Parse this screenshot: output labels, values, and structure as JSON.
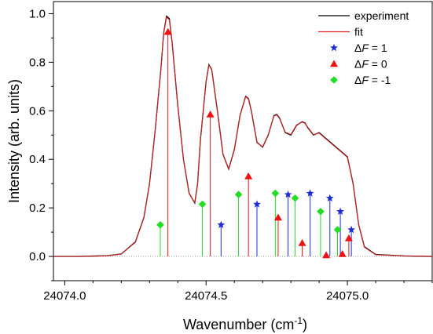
{
  "chart_data": {
    "type": "line",
    "xlabel": "Wavenumber (cm",
    "xlabel_sup": "-1",
    "xlabel_close": ")",
    "ylabel": "Intensity (arb. units)",
    "xlim": [
      24073.96,
      24075.3
    ],
    "ylim": [
      -0.1,
      1.05
    ],
    "x_ticks": [
      {
        "value": 24074.0,
        "label": "24074.0"
      },
      {
        "value": 24074.5,
        "label": "24074.5"
      },
      {
        "value": 24075.0,
        "label": "24075.0"
      }
    ],
    "y_ticks": [
      {
        "value": 0.0,
        "label": "0.0"
      },
      {
        "value": 0.2,
        "label": "0.2"
      },
      {
        "value": 0.4,
        "label": "0.4"
      },
      {
        "value": 0.6,
        "label": "0.6"
      },
      {
        "value": 0.8,
        "label": "0.8"
      },
      {
        "value": 1.0,
        "label": "1.0"
      }
    ],
    "legend_position": "top-right",
    "line_series": [
      {
        "name": "experiment",
        "color": "#000000",
        "x": [
          24073.96,
          24074.05,
          24074.15,
          24074.2,
          24074.25,
          24074.28,
          24074.3,
          24074.32,
          24074.34,
          24074.35,
          24074.36,
          24074.37,
          24074.38,
          24074.4,
          24074.42,
          24074.44,
          24074.46,
          24074.47,
          24074.48,
          24074.5,
          24074.51,
          24074.52,
          24074.54,
          24074.56,
          24074.58,
          24074.6,
          24074.62,
          24074.64,
          24074.65,
          24074.66,
          24074.68,
          24074.7,
          24074.72,
          24074.74,
          24074.75,
          24074.76,
          24074.78,
          24074.8,
          24074.82,
          24074.84,
          24074.85,
          24074.86,
          24074.88,
          24074.9,
          24074.92,
          24074.94,
          24074.96,
          24074.98,
          24075.0,
          24075.02,
          24075.04,
          24075.06,
          24075.1,
          24075.2,
          24075.3
        ],
        "y": [
          0.0,
          0.0,
          0.003,
          0.01,
          0.06,
          0.16,
          0.3,
          0.52,
          0.77,
          0.92,
          0.99,
          0.98,
          0.88,
          0.62,
          0.4,
          0.26,
          0.22,
          0.3,
          0.48,
          0.72,
          0.79,
          0.77,
          0.6,
          0.42,
          0.36,
          0.44,
          0.58,
          0.66,
          0.65,
          0.6,
          0.47,
          0.45,
          0.5,
          0.58,
          0.585,
          0.57,
          0.51,
          0.5,
          0.54,
          0.555,
          0.55,
          0.53,
          0.5,
          0.51,
          0.49,
          0.47,
          0.45,
          0.43,
          0.41,
          0.3,
          0.13,
          0.04,
          0.008,
          0.002,
          0.0
        ]
      },
      {
        "name": "fit",
        "color": "#e02020",
        "x": [
          24073.96,
          24074.05,
          24074.15,
          24074.2,
          24074.25,
          24074.28,
          24074.3,
          24074.32,
          24074.34,
          24074.35,
          24074.36,
          24074.37,
          24074.38,
          24074.4,
          24074.42,
          24074.44,
          24074.46,
          24074.47,
          24074.48,
          24074.5,
          24074.51,
          24074.52,
          24074.54,
          24074.56,
          24074.58,
          24074.6,
          24074.62,
          24074.64,
          24074.65,
          24074.66,
          24074.68,
          24074.7,
          24074.72,
          24074.74,
          24074.75,
          24074.76,
          24074.78,
          24074.8,
          24074.82,
          24074.84,
          24074.85,
          24074.86,
          24074.88,
          24074.9,
          24074.92,
          24074.94,
          24074.96,
          24074.98,
          24075.0,
          24075.02,
          24075.04,
          24075.06,
          24075.1,
          24075.2,
          24075.3
        ],
        "y": [
          0.0,
          0.0,
          0.002,
          0.01,
          0.058,
          0.158,
          0.298,
          0.518,
          0.768,
          0.918,
          0.985,
          0.975,
          0.878,
          0.618,
          0.398,
          0.258,
          0.222,
          0.302,
          0.482,
          0.718,
          0.788,
          0.768,
          0.598,
          0.418,
          0.362,
          0.442,
          0.578,
          0.658,
          0.648,
          0.598,
          0.468,
          0.452,
          0.502,
          0.578,
          0.583,
          0.568,
          0.512,
          0.502,
          0.542,
          0.553,
          0.548,
          0.532,
          0.502,
          0.508,
          0.488,
          0.468,
          0.448,
          0.428,
          0.408,
          0.298,
          0.128,
          0.038,
          0.007,
          0.002,
          0.0
        ]
      }
    ],
    "stick_series": [
      {
        "name": "ΔF = 1",
        "name_prefix": "Δ",
        "name_var": "F",
        "name_suffix": " = 1",
        "color": "#1f2bd6",
        "marker": "star",
        "x": [
          24074.553,
          24074.68,
          24074.79,
          24074.868,
          24074.938,
          24074.975,
          24075.014
        ],
        "y": [
          0.13,
          0.215,
          0.255,
          0.26,
          0.24,
          0.185,
          0.11
        ]
      },
      {
        "name": "ΔF = 0",
        "name_prefix": "Δ",
        "name_var": "F",
        "name_suffix": " = 0",
        "color": "#ee1111",
        "marker": "triangle",
        "x": [
          24074.365,
          24074.515,
          24074.65,
          24074.755,
          24074.84,
          24074.925,
          24074.982,
          24075.005
        ],
        "y": [
          0.925,
          0.585,
          0.33,
          0.16,
          0.055,
          0.005,
          0.01,
          0.075
        ]
      },
      {
        "name": "ΔF = -1",
        "name_prefix": "Δ",
        "name_var": "F",
        "name_suffix": " = -1",
        "color": "#22dd22",
        "marker": "diamond",
        "x": [
          24074.338,
          24074.487,
          24074.615,
          24074.745,
          24074.815,
          24074.905,
          24074.965
        ],
        "y": [
          0.13,
          0.215,
          0.255,
          0.26,
          0.24,
          0.185,
          0.11
        ]
      }
    ]
  }
}
